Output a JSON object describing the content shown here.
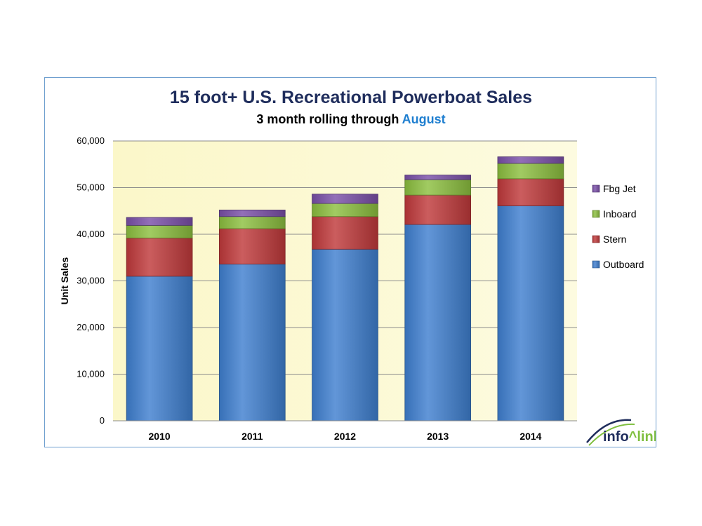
{
  "chart_data": {
    "type": "bar",
    "stacked": true,
    "title": "15 foot+ U.S. Recreational Powerboat Sales",
    "subtitle_prefix": "3 month rolling through ",
    "subtitle_accent": "August",
    "ylabel": "Unit Sales",
    "xlabel": "",
    "ylim": [
      0,
      60000
    ],
    "yticks": [
      0,
      10000,
      20000,
      30000,
      40000,
      50000,
      60000
    ],
    "ytick_labels": [
      "0",
      "10,000",
      "20,000",
      "30,000",
      "40,000",
      "50,000",
      "60,000"
    ],
    "categories": [
      "2010",
      "2011",
      "2012",
      "2013",
      "2014"
    ],
    "series": [
      {
        "name": "Outboard",
        "color": "#3f7fd0",
        "values": [
          31000,
          33600,
          36800,
          42100,
          46100
        ]
      },
      {
        "name": "Stern",
        "color": "#c0393b",
        "values": [
          8200,
          7600,
          7000,
          6300,
          5800
        ]
      },
      {
        "name": "Inboard",
        "color": "#8cbf3f",
        "values": [
          2700,
          2600,
          2800,
          3300,
          3300
        ]
      },
      {
        "name": "Fbg Jet",
        "color": "#7a4fa8",
        "values": [
          1700,
          1400,
          2000,
          1000,
          1400
        ]
      }
    ],
    "legend_order": [
      "Fbg Jet",
      "Inboard",
      "Stern",
      "Outboard"
    ],
    "legend_position": "right",
    "grid": true,
    "plot_background": "#fbf8cf"
  },
  "logo": {
    "prefix": "inf",
    "middle": "o",
    "caret": "^",
    "suffix": "link",
    "color_dark": "#1f2d5c",
    "color_accent": "#7fbf3f"
  }
}
